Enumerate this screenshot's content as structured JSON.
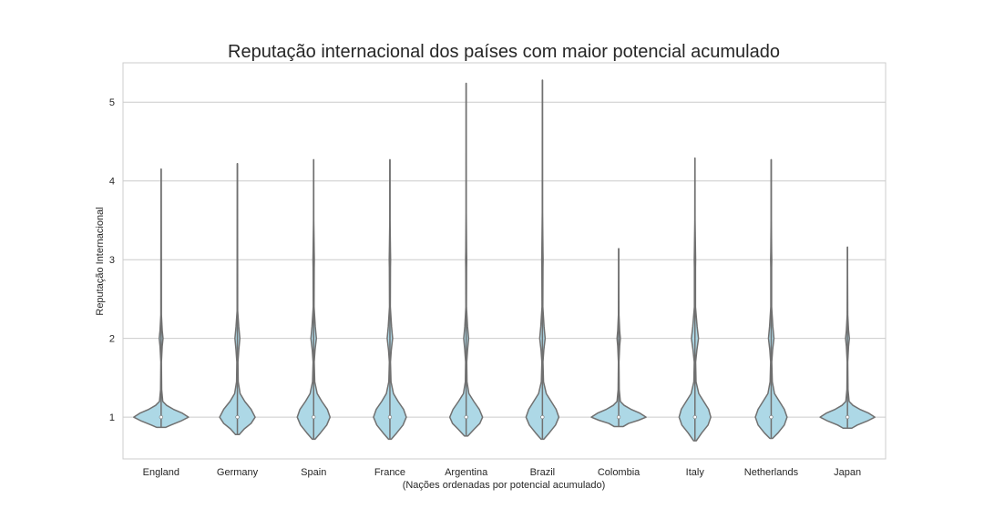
{
  "chart_data": {
    "type": "violin",
    "title": "Reputação internacional dos países com maior potencial acumulado",
    "xlabel": "(Nações ordenadas por potencial acumulado)",
    "ylabel": "Reputação Internacional",
    "categories": [
      "England",
      "Germany",
      "Spain",
      "France",
      "Argentina",
      "Brazil",
      "Colombia",
      "Italy",
      "Netherlands",
      "Japan"
    ],
    "ylim": [
      0.47,
      5.5
    ],
    "yticks": [
      1,
      2,
      3,
      4,
      5
    ],
    "grid": "horizontal",
    "colors": {
      "fill": "#add8e6",
      "stroke": "#707070",
      "grid": "#cccccc",
      "frame": "#cccccc",
      "median": "#ffffff"
    },
    "violins": [
      {
        "name": "England",
        "min": 0.87,
        "max": 4.15,
        "median": 1,
        "profile": [
          [
            0.87,
            0.16
          ],
          [
            0.9,
            0.36
          ],
          [
            0.95,
            0.72
          ],
          [
            1.0,
            1.0
          ],
          [
            1.05,
            0.78
          ],
          [
            1.1,
            0.45
          ],
          [
            1.15,
            0.2
          ],
          [
            1.2,
            0.06
          ],
          [
            1.35,
            0.02
          ],
          [
            1.7,
            0.01
          ],
          [
            1.9,
            0.04
          ],
          [
            2.0,
            0.07
          ],
          [
            2.1,
            0.04
          ],
          [
            2.3,
            0.01
          ],
          [
            3.0,
            0.008
          ],
          [
            4.15,
            0.003
          ]
        ]
      },
      {
        "name": "Germany",
        "min": 0.78,
        "max": 4.22,
        "median": 1,
        "profile": [
          [
            0.78,
            0.07
          ],
          [
            0.85,
            0.25
          ],
          [
            0.92,
            0.5
          ],
          [
            1.0,
            0.65
          ],
          [
            1.1,
            0.5
          ],
          [
            1.2,
            0.27
          ],
          [
            1.3,
            0.1
          ],
          [
            1.45,
            0.03
          ],
          [
            1.7,
            0.02
          ],
          [
            1.85,
            0.05
          ],
          [
            2.0,
            0.09
          ],
          [
            2.15,
            0.05
          ],
          [
            2.35,
            0.01
          ],
          [
            3.0,
            0.008
          ],
          [
            4.22,
            0.003
          ]
        ]
      },
      {
        "name": "Spain",
        "min": 0.72,
        "max": 4.27,
        "median": 1,
        "profile": [
          [
            0.72,
            0.05
          ],
          [
            0.8,
            0.25
          ],
          [
            0.9,
            0.48
          ],
          [
            1.0,
            0.6
          ],
          [
            1.1,
            0.5
          ],
          [
            1.2,
            0.3
          ],
          [
            1.3,
            0.13
          ],
          [
            1.45,
            0.04
          ],
          [
            1.7,
            0.02
          ],
          [
            1.85,
            0.05
          ],
          [
            2.0,
            0.1
          ],
          [
            2.15,
            0.06
          ],
          [
            2.4,
            0.015
          ],
          [
            2.9,
            0.02
          ],
          [
            3.0,
            0.025
          ],
          [
            3.1,
            0.02
          ],
          [
            3.5,
            0.005
          ],
          [
            4.27,
            0.003
          ]
        ]
      },
      {
        "name": "France",
        "min": 0.72,
        "max": 4.27,
        "median": 1,
        "profile": [
          [
            0.72,
            0.05
          ],
          [
            0.8,
            0.25
          ],
          [
            0.9,
            0.48
          ],
          [
            1.0,
            0.6
          ],
          [
            1.1,
            0.5
          ],
          [
            1.2,
            0.3
          ],
          [
            1.3,
            0.13
          ],
          [
            1.45,
            0.04
          ],
          [
            1.7,
            0.02
          ],
          [
            1.85,
            0.05
          ],
          [
            2.0,
            0.1
          ],
          [
            2.15,
            0.06
          ],
          [
            2.4,
            0.015
          ],
          [
            2.9,
            0.02
          ],
          [
            3.0,
            0.025
          ],
          [
            3.1,
            0.02
          ],
          [
            3.5,
            0.005
          ],
          [
            4.27,
            0.003
          ]
        ]
      },
      {
        "name": "Argentina",
        "min": 0.76,
        "max": 5.24,
        "median": 1,
        "profile": [
          [
            0.76,
            0.06
          ],
          [
            0.85,
            0.3
          ],
          [
            0.92,
            0.5
          ],
          [
            1.0,
            0.6
          ],
          [
            1.1,
            0.48
          ],
          [
            1.2,
            0.28
          ],
          [
            1.3,
            0.1
          ],
          [
            1.45,
            0.03
          ],
          [
            1.7,
            0.02
          ],
          [
            1.85,
            0.05
          ],
          [
            2.0,
            0.09
          ],
          [
            2.15,
            0.05
          ],
          [
            2.4,
            0.01
          ],
          [
            2.9,
            0.015
          ],
          [
            3.0,
            0.02
          ],
          [
            3.1,
            0.015
          ],
          [
            3.6,
            0.004
          ],
          [
            4.2,
            0.004
          ],
          [
            5.24,
            0.003
          ]
        ]
      },
      {
        "name": "Brazil",
        "min": 0.72,
        "max": 5.28,
        "median": 1,
        "profile": [
          [
            0.72,
            0.05
          ],
          [
            0.8,
            0.25
          ],
          [
            0.9,
            0.48
          ],
          [
            1.0,
            0.6
          ],
          [
            1.1,
            0.5
          ],
          [
            1.2,
            0.32
          ],
          [
            1.3,
            0.14
          ],
          [
            1.45,
            0.04
          ],
          [
            1.7,
            0.02
          ],
          [
            1.85,
            0.05
          ],
          [
            2.0,
            0.1
          ],
          [
            2.15,
            0.06
          ],
          [
            2.4,
            0.015
          ],
          [
            2.9,
            0.02
          ],
          [
            3.0,
            0.025
          ],
          [
            3.1,
            0.02
          ],
          [
            3.6,
            0.005
          ],
          [
            4.2,
            0.004
          ],
          [
            5.28,
            0.003
          ]
        ]
      },
      {
        "name": "Colombia",
        "min": 0.88,
        "max": 3.14,
        "median": 1,
        "profile": [
          [
            0.88,
            0.16
          ],
          [
            0.92,
            0.36
          ],
          [
            0.96,
            0.72
          ],
          [
            1.0,
            1.0
          ],
          [
            1.05,
            0.78
          ],
          [
            1.1,
            0.45
          ],
          [
            1.15,
            0.2
          ],
          [
            1.2,
            0.06
          ],
          [
            1.35,
            0.02
          ],
          [
            1.7,
            0.01
          ],
          [
            1.9,
            0.035
          ],
          [
            2.0,
            0.06
          ],
          [
            2.1,
            0.035
          ],
          [
            2.3,
            0.01
          ],
          [
            2.8,
            0.004
          ],
          [
            3.14,
            0.003
          ]
        ]
      },
      {
        "name": "Italy",
        "min": 0.7,
        "max": 4.29,
        "median": 1,
        "profile": [
          [
            0.7,
            0.05
          ],
          [
            0.8,
            0.25
          ],
          [
            0.9,
            0.48
          ],
          [
            1.0,
            0.58
          ],
          [
            1.1,
            0.5
          ],
          [
            1.2,
            0.32
          ],
          [
            1.3,
            0.14
          ],
          [
            1.45,
            0.04
          ],
          [
            1.7,
            0.025
          ],
          [
            1.85,
            0.07
          ],
          [
            2.0,
            0.13
          ],
          [
            2.15,
            0.08
          ],
          [
            2.4,
            0.02
          ],
          [
            2.9,
            0.02
          ],
          [
            3.0,
            0.025
          ],
          [
            3.1,
            0.02
          ],
          [
            3.5,
            0.005
          ],
          [
            4.29,
            0.003
          ]
        ]
      },
      {
        "name": "Netherlands",
        "min": 0.73,
        "max": 4.27,
        "median": 1,
        "profile": [
          [
            0.73,
            0.05
          ],
          [
            0.8,
            0.25
          ],
          [
            0.9,
            0.48
          ],
          [
            1.0,
            0.58
          ],
          [
            1.1,
            0.48
          ],
          [
            1.2,
            0.3
          ],
          [
            1.3,
            0.12
          ],
          [
            1.45,
            0.04
          ],
          [
            1.7,
            0.02
          ],
          [
            1.85,
            0.05
          ],
          [
            2.0,
            0.1
          ],
          [
            2.15,
            0.06
          ],
          [
            2.4,
            0.015
          ],
          [
            2.9,
            0.015
          ],
          [
            3.0,
            0.02
          ],
          [
            3.1,
            0.015
          ],
          [
            3.5,
            0.005
          ],
          [
            4.27,
            0.003
          ]
        ]
      },
      {
        "name": "Japan",
        "min": 0.86,
        "max": 3.16,
        "median": 1,
        "profile": [
          [
            0.86,
            0.16
          ],
          [
            0.9,
            0.36
          ],
          [
            0.95,
            0.72
          ],
          [
            1.0,
            1.0
          ],
          [
            1.05,
            0.78
          ],
          [
            1.1,
            0.45
          ],
          [
            1.15,
            0.2
          ],
          [
            1.2,
            0.06
          ],
          [
            1.35,
            0.02
          ],
          [
            1.7,
            0.01
          ],
          [
            1.9,
            0.04
          ],
          [
            2.0,
            0.07
          ],
          [
            2.1,
            0.04
          ],
          [
            2.3,
            0.01
          ],
          [
            2.8,
            0.004
          ],
          [
            3.16,
            0.003
          ]
        ]
      }
    ]
  }
}
